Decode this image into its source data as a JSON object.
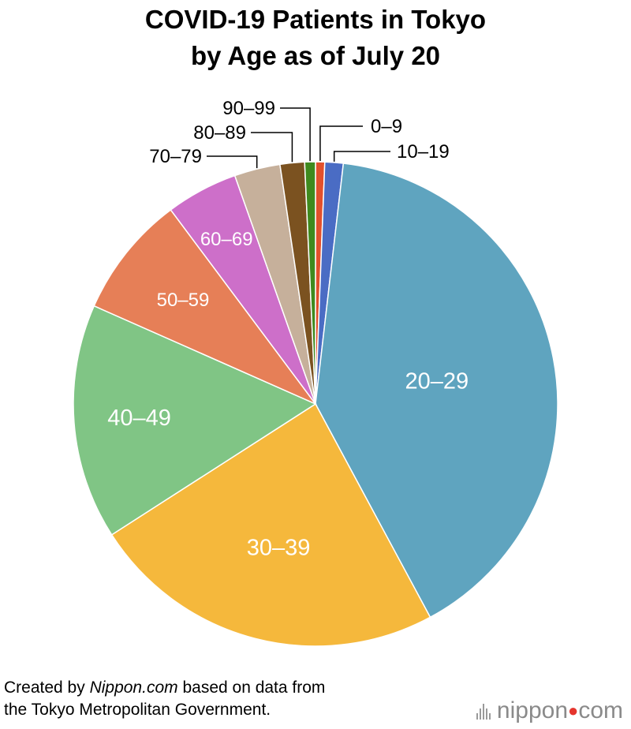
{
  "title_line1": "COVID-19 Patients in Tokyo",
  "title_line2": "by Age as of July 20",
  "footer": {
    "line1_prefix": "Created by ",
    "line1_brand": "Nippon.com",
    "line1_suffix": " based on data from",
    "line2": "the Tokyo Metropolitan Government."
  },
  "logo": {
    "part1": "nippon",
    "part2": "com"
  },
  "chart_data": {
    "type": "pie",
    "start": "12 o'clock",
    "direction": "clockwise",
    "slices": [
      {
        "label": "0–9",
        "value": 0.6,
        "color": "#e2502c"
      },
      {
        "label": "10–19",
        "value": 1.2,
        "color": "#4a6cc4"
      },
      {
        "label": "20–29",
        "value": 39.5,
        "color": "#5fa4bf"
      },
      {
        "label": "30–39",
        "value": 23.3,
        "color": "#f5b83c"
      },
      {
        "label": "40–49",
        "value": 15.4,
        "color": "#80c585"
      },
      {
        "label": "50–59",
        "value": 8.0,
        "color": "#e67f57"
      },
      {
        "label": "60–69",
        "value": 4.7,
        "color": "#cd6fc9"
      },
      {
        "label": "70–79",
        "value": 3.0,
        "color": "#c6b09b"
      },
      {
        "label": "80–89",
        "value": 1.6,
        "color": "#7b5220"
      },
      {
        "label": "90–99",
        "value": 0.7,
        "color": "#3f8a1e"
      }
    ]
  }
}
